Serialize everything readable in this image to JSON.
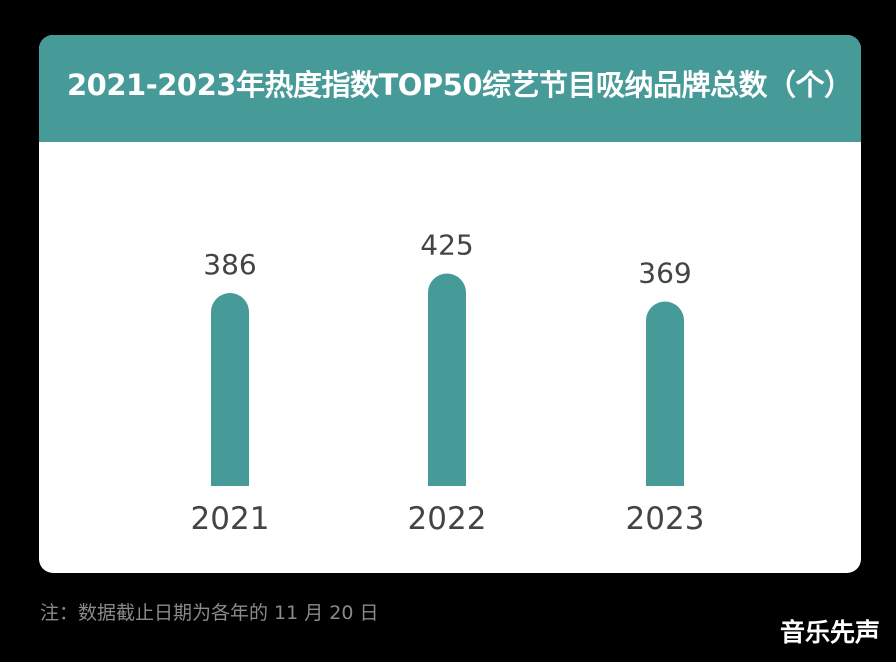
{
  "header": {
    "title": "2021-2023年热度指数TOP50综艺节目吸纳品牌总数（个）"
  },
  "footnote": "注：数据截止日期为各年的 11 月 20 日",
  "watermark": "音乐先声",
  "colors": {
    "background": "#000000",
    "header": "#469a98",
    "bar": "#469a98",
    "card": "#ffffff"
  },
  "chart_data": {
    "type": "bar",
    "title": "2021-2023年热度指数TOP50综艺节目吸纳品牌总数（个）",
    "categories": [
      "2021",
      "2022",
      "2023"
    ],
    "values": [
      386,
      425,
      369
    ],
    "data_labels": [
      "386",
      "425",
      "369"
    ],
    "xlabel": "",
    "ylabel": "",
    "grid": false,
    "legend": "none"
  }
}
